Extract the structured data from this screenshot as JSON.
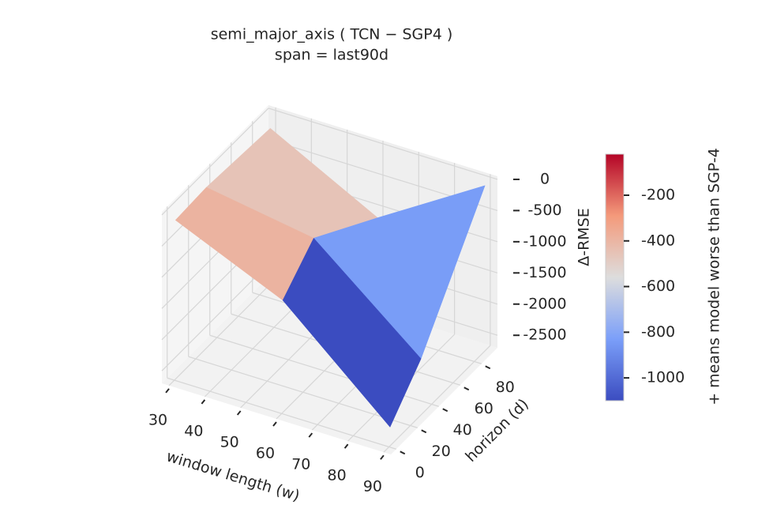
{
  "chart_data": {
    "type": "surface",
    "title": "semi_major_axis  ( TCN − SGP4 )",
    "subtitle": "span = last90d",
    "x_label": "window length (w)",
    "y_label": "horizon (d)",
    "z_label": "Δ-RMSE",
    "x": [
      30,
      60,
      90
    ],
    "y": [
      1,
      30,
      90
    ],
    "z": [
      [
        -150,
        -900,
        -2400
      ],
      [
        -120,
        -400,
        -1800
      ],
      [
        -200,
        -1100,
        -50
      ]
    ],
    "xlim": [
      28,
      92
    ],
    "xticks": [
      30,
      40,
      50,
      60,
      70,
      80,
      90
    ],
    "ylim": [
      -5,
      95
    ],
    "yticks": [
      0,
      20,
      40,
      60,
      80
    ],
    "zlim": [
      -2700,
      50
    ],
    "zticks": [
      0,
      -500,
      -1000,
      -1500,
      -2000,
      -2500
    ],
    "colormap": "coolwarm",
    "clim": [
      -1100,
      -20
    ],
    "colorbar_label": "+ means model worse than SGP-4",
    "colorbar_ticks": [
      -200,
      -400,
      -600,
      -800,
      -1000
    ],
    "grid": true
  }
}
